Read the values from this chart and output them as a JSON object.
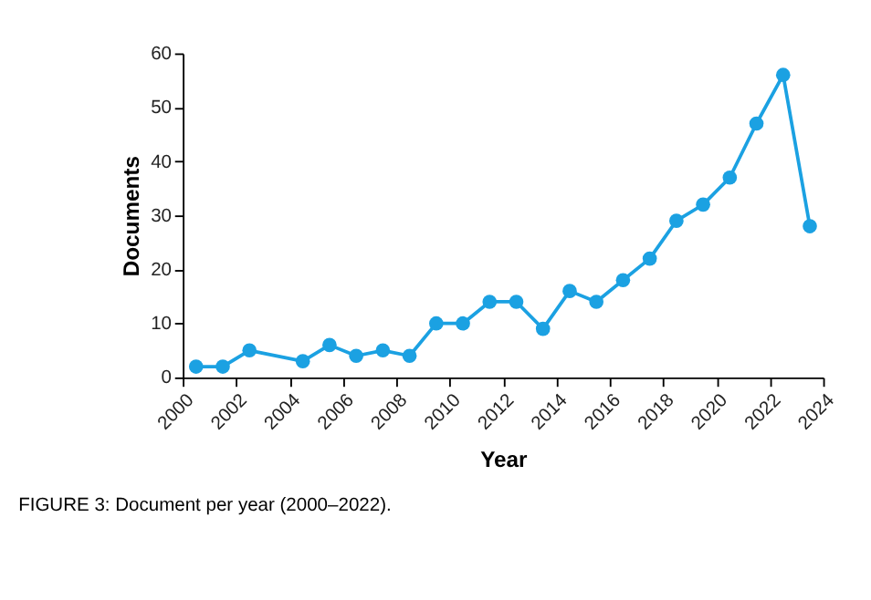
{
  "chart_data": {
    "type": "line",
    "xlabel": "Year",
    "ylabel": "Documents",
    "x": [
      2000.5,
      2001.5,
      2002.5,
      2004.5,
      2005.5,
      2006.5,
      2007.5,
      2008.5,
      2009.5,
      2010.5,
      2011.5,
      2012.5,
      2013.5,
      2014.5,
      2015.5,
      2016.5,
      2017.5,
      2018.5,
      2019.5,
      2020.5,
      2021.5,
      2022.5,
      2023.5
    ],
    "series": [
      {
        "color": "#1ba1e2",
        "values": [
          2,
          2,
          5,
          3,
          6,
          4,
          5,
          4,
          10,
          10,
          14,
          14,
          9,
          16,
          14,
          18,
          22,
          29,
          32,
          37,
          47,
          56,
          28
        ]
      }
    ],
    "xlim": [
      2000,
      2024
    ],
    "xticks": [
      2000,
      2002,
      2004,
      2006,
      2008,
      2010,
      2012,
      2014,
      2016,
      2018,
      2020,
      2022,
      2024
    ],
    "ylim": [
      0,
      60
    ],
    "yticks": [
      0,
      10,
      20,
      30,
      40,
      50,
      60
    ],
    "marker": "circle",
    "line_style": "solid",
    "grid": false,
    "legend": false,
    "annotations": [
      "FIGURE 3: Document per year (2000–2022)."
    ]
  }
}
